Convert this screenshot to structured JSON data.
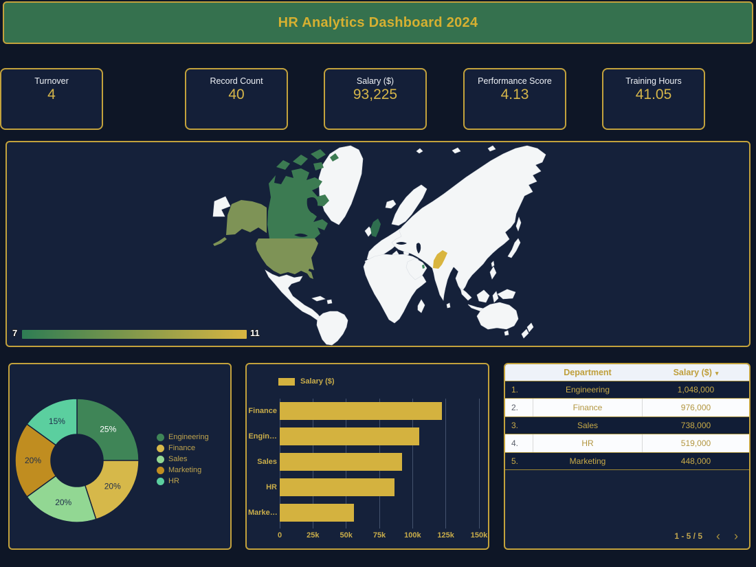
{
  "header": {
    "title": "HR Analytics Dashboard 2024"
  },
  "theme": {
    "accent_gold": "#c3a23c",
    "header_green": "#35714e",
    "page_bg": "#0e1626",
    "panel_bg": "#15213a",
    "bar_gold": "#d4b23f"
  },
  "kpi": {
    "cards": [
      {
        "label": "Record Count",
        "value": "40"
      },
      {
        "label": "Salary ($)",
        "value": "93,225"
      },
      {
        "label": "Performance Score",
        "value": "4.13"
      },
      {
        "label": "Training Hours",
        "value": "41.05"
      },
      {
        "label": "Turnover",
        "value": "4"
      }
    ]
  },
  "map": {
    "colorbar": {
      "min_label": "7",
      "max_label": "11",
      "start_color": "#2e7d54",
      "end_color": "#d8b542"
    },
    "country_colors": {
      "canada": "#3c7b52",
      "usa": "#7e9356",
      "uk": "#2f6f4f",
      "pakistan": "#d9b53f",
      "qatar": "#3c8a5c"
    }
  },
  "chart_data": [
    {
      "type": "pie",
      "subtype": "donut",
      "categories": [
        "Engineering",
        "Finance",
        "Sales",
        "Marketing",
        "HR"
      ],
      "values": [
        25,
        20,
        20,
        20,
        15
      ],
      "unit": "%",
      "labels": [
        "25%",
        "20%",
        "20%",
        "20%",
        "15%"
      ],
      "colors": [
        "#3f8557",
        "#d6b84a",
        "#92d793",
        "#c08d20",
        "#5bcf9f"
      ],
      "label_colors": [
        "#ffffff",
        "#1e2d4a",
        "#1e2d4a",
        "#1e2d4a",
        "#1e2d4a"
      ],
      "legend_position": "right"
    },
    {
      "type": "bar",
      "orientation": "horizontal",
      "series_name": "Salary ($)",
      "categories_display": [
        "Finance",
        "Engin…",
        "Sales",
        "HR",
        "Marke…"
      ],
      "categories_full": [
        "Finance",
        "Engineering",
        "Sales",
        "HR",
        "Marketing"
      ],
      "values": [
        122000,
        104800,
        92250,
        86500,
        56000
      ],
      "xlim": [
        0,
        150000
      ],
      "xticks": [
        {
          "value": 0,
          "label": "0"
        },
        {
          "value": 25000,
          "label": "25k"
        },
        {
          "value": 50000,
          "label": "50k"
        },
        {
          "value": 75000,
          "label": "75k"
        },
        {
          "value": 100000,
          "label": "100k"
        },
        {
          "value": 125000,
          "label": "125k"
        },
        {
          "value": 150000,
          "label": "150k"
        }
      ],
      "grid": true,
      "legend_position": "top-left"
    },
    {
      "type": "heatmap",
      "subtype": "choropleth-world-map",
      "colorbar_range": [
        7,
        11
      ],
      "countries": [
        {
          "name": "Canada",
          "approx_value": 7
        },
        {
          "name": "United States",
          "approx_value": 9
        },
        {
          "name": "United Kingdom",
          "approx_value": 7
        },
        {
          "name": "Pakistan",
          "approx_value": 11
        },
        {
          "name": "Qatar",
          "approx_value": 7
        }
      ]
    }
  ],
  "table": {
    "columns": [
      {
        "label": "Department"
      },
      {
        "label": "Salary ($)",
        "sorted": "desc",
        "sort_icon": "▾"
      }
    ],
    "rows": [
      {
        "index": "1.",
        "department": "Engineering",
        "salary": "1,048,000"
      },
      {
        "index": "2.",
        "department": "Finance",
        "salary": "976,000"
      },
      {
        "index": "3.",
        "department": "Sales",
        "salary": "738,000"
      },
      {
        "index": "4.",
        "department": "HR",
        "salary": "519,000"
      },
      {
        "index": "5.",
        "department": "Marketing",
        "salary": "448,000"
      }
    ],
    "pagination": {
      "label": "1 - 5 / 5",
      "prev_icon": "‹",
      "next_icon": "›"
    }
  }
}
